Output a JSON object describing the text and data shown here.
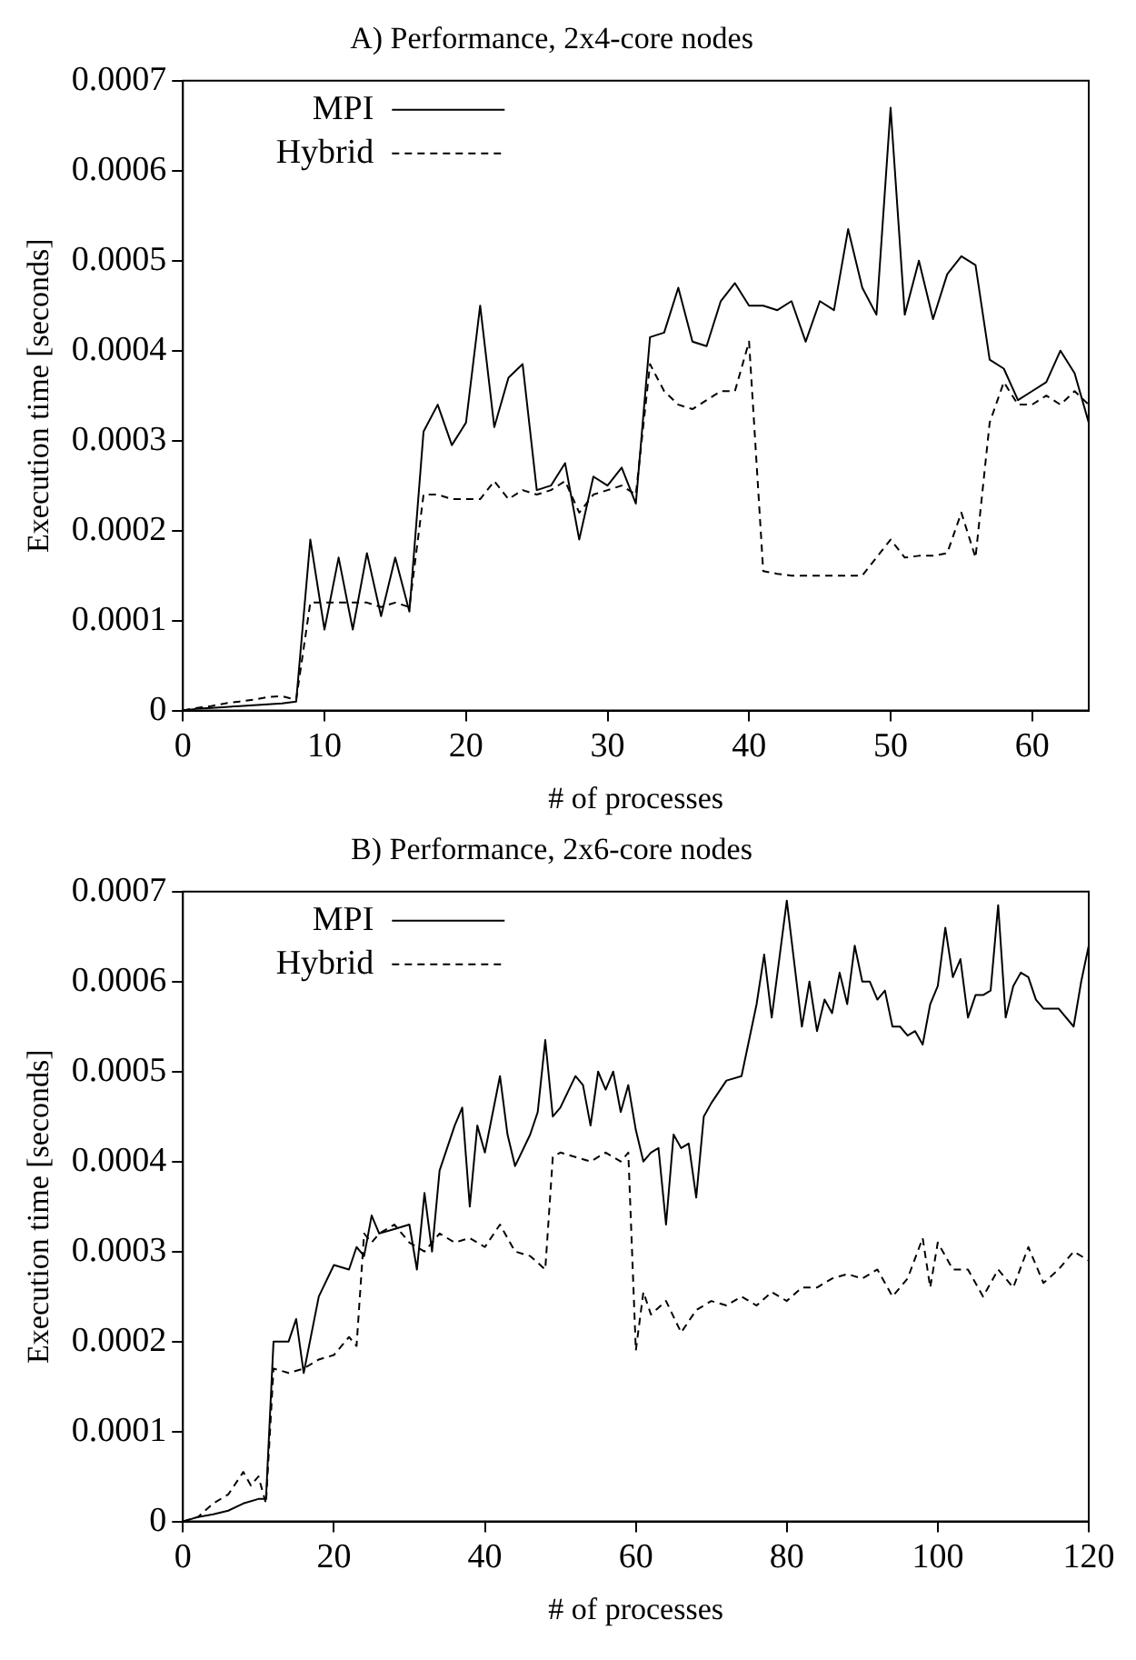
{
  "chart_data": [
    {
      "type": "line",
      "title": "A) Performance, 2x4-core nodes",
      "xlabel": "# of processes",
      "ylabel": "Execution time [seconds]",
      "xlim": [
        0,
        64
      ],
      "xticks": [
        0,
        10,
        20,
        30,
        40,
        50,
        60
      ],
      "ylim": [
        0,
        0.0007
      ],
      "yticks": [
        0,
        0.0001,
        0.0002,
        0.0003,
        0.0004,
        0.0005,
        0.0006,
        0.0007
      ],
      "legend": "top left",
      "x": [
        0,
        1,
        2,
        3,
        4,
        5,
        6,
        7,
        8,
        9,
        10,
        11,
        12,
        13,
        14,
        15,
        16,
        17,
        18,
        19,
        20,
        21,
        22,
        23,
        24,
        25,
        26,
        27,
        28,
        29,
        30,
        31,
        32,
        33,
        34,
        35,
        36,
        37,
        38,
        39,
        40,
        41,
        42,
        43,
        44,
        45,
        46,
        47,
        48,
        49,
        50,
        51,
        52,
        53,
        54,
        55,
        56,
        57,
        58,
        59,
        60,
        61,
        62,
        63,
        64
      ],
      "series": [
        {
          "name": "MPI",
          "color": "#000000",
          "line_style": "solid",
          "values": [
            0,
            2e-06,
            3e-06,
            4e-06,
            5e-06,
            6e-06,
            7e-06,
            8e-06,
            1e-05,
            0.00019,
            9e-05,
            0.00017,
            9e-05,
            0.000175,
            0.000105,
            0.00017,
            0.00011,
            0.00031,
            0.00034,
            0.000295,
            0.00032,
            0.00045,
            0.000315,
            0.00037,
            0.000385,
            0.000245,
            0.00025,
            0.000275,
            0.00019,
            0.00026,
            0.00025,
            0.00027,
            0.00023,
            0.000415,
            0.00042,
            0.00047,
            0.00041,
            0.000405,
            0.000455,
            0.000475,
            0.00045,
            0.00045,
            0.000445,
            0.000455,
            0.00041,
            0.000455,
            0.000445,
            0.000535,
            0.00047,
            0.00044,
            0.00067,
            0.00044,
            0.0005,
            0.000435,
            0.000485,
            0.000505,
            0.000495,
            0.00039,
            0.00038,
            0.000345,
            0.000355,
            0.000365,
            0.0004,
            0.000375,
            0.00032
          ]
        },
        {
          "name": "Hybrid",
          "color": "#000000",
          "line_style": "dashed",
          "values": [
            0,
            3e-06,
            5e-06,
            8e-06,
            1e-05,
            1.2e-05,
            1.5e-05,
            1.6e-05,
            1.2e-05,
            0.00012,
            0.00012,
            0.00012,
            0.00012,
            0.00012,
            0.000115,
            0.00012,
            0.000115,
            0.00024,
            0.00024,
            0.000235,
            0.000235,
            0.000235,
            0.000255,
            0.000235,
            0.000245,
            0.00024,
            0.000245,
            0.000255,
            0.00022,
            0.00024,
            0.000245,
            0.00025,
            0.00024,
            0.000385,
            0.000355,
            0.00034,
            0.000335,
            0.000345,
            0.000355,
            0.000355,
            0.00041,
            0.000155,
            0.000152,
            0.00015,
            0.00015,
            0.00015,
            0.00015,
            0.00015,
            0.00015,
            0.00017,
            0.00019,
            0.00017,
            0.000172,
            0.000172,
            0.000175,
            0.00022,
            0.00017,
            0.00032,
            0.000365,
            0.00034,
            0.00034,
            0.00035,
            0.00034,
            0.000355,
            0.00034
          ]
        }
      ]
    },
    {
      "type": "line",
      "title": "B) Performance, 2x6-core nodes",
      "xlabel": "# of processes",
      "ylabel": "Execution time [seconds]",
      "xlim": [
        0,
        120
      ],
      "xticks": [
        0,
        20,
        40,
        60,
        80,
        100,
        120
      ],
      "ylim": [
        0,
        0.0007
      ],
      "yticks": [
        0,
        0.0001,
        0.0002,
        0.0003,
        0.0004,
        0.0005,
        0.0006,
        0.0007
      ],
      "legend": "top left",
      "series": [
        {
          "name": "MPI",
          "color": "#000000",
          "line_style": "solid",
          "x": [
            0,
            2,
            4,
            6,
            8,
            10,
            11,
            12,
            14,
            15,
            16,
            18,
            20,
            22,
            23,
            24,
            25,
            26,
            28,
            30,
            31,
            32,
            33,
            34,
            36,
            37,
            38,
            39,
            40,
            42,
            43,
            44,
            46,
            47,
            48,
            49,
            50,
            52,
            53,
            54,
            55,
            56,
            57,
            58,
            59,
            60,
            61,
            62,
            63,
            64,
            65,
            66,
            67,
            68,
            69,
            70,
            72,
            74,
            76,
            77,
            78,
            80,
            81,
            82,
            83,
            84,
            85,
            86,
            87,
            88,
            89,
            90,
            91,
            92,
            93,
            94,
            95,
            96,
            97,
            98,
            99,
            100,
            101,
            102,
            103,
            104,
            105,
            106,
            107,
            108,
            109,
            110,
            111,
            112,
            113,
            114,
            115,
            116,
            118,
            119,
            120
          ],
          "values": [
            0,
            5e-06,
            8e-06,
            1.2e-05,
            2e-05,
            2.5e-05,
            2.5e-05,
            0.0002,
            0.0002,
            0.000225,
            0.000165,
            0.00025,
            0.000285,
            0.00028,
            0.000305,
            0.000295,
            0.00034,
            0.00032,
            0.000325,
            0.00033,
            0.00028,
            0.000365,
            0.0003,
            0.00039,
            0.00044,
            0.00046,
            0.00035,
            0.00044,
            0.00041,
            0.000495,
            0.00043,
            0.000395,
            0.00043,
            0.000455,
            0.000535,
            0.00045,
            0.00046,
            0.000495,
            0.000485,
            0.00044,
            0.0005,
            0.00048,
            0.0005,
            0.000455,
            0.000485,
            0.000435,
            0.0004,
            0.00041,
            0.000415,
            0.00033,
            0.00043,
            0.000415,
            0.00042,
            0.00036,
            0.00045,
            0.000465,
            0.00049,
            0.000495,
            0.000575,
            0.00063,
            0.00056,
            0.00069,
            0.00062,
            0.00055,
            0.0006,
            0.000545,
            0.00058,
            0.000565,
            0.00061,
            0.000575,
            0.00064,
            0.0006,
            0.0006,
            0.00058,
            0.00059,
            0.00055,
            0.00055,
            0.00054,
            0.000545,
            0.00053,
            0.000575,
            0.000595,
            0.00066,
            0.000605,
            0.000625,
            0.00056,
            0.000585,
            0.000585,
            0.00059,
            0.000685,
            0.00056,
            0.000595,
            0.00061,
            0.000605,
            0.00058,
            0.00057,
            0.00057,
            0.00057,
            0.00055,
            0.0006,
            0.00064
          ]
        },
        {
          "name": "Hybrid",
          "color": "#000000",
          "line_style": "dashed",
          "x": [
            0,
            2,
            4,
            6,
            8,
            9,
            10,
            11,
            12,
            14,
            16,
            18,
            20,
            22,
            23,
            24,
            25,
            26,
            28,
            30,
            32,
            34,
            36,
            38,
            40,
            42,
            44,
            46,
            48,
            49,
            50,
            52,
            54,
            56,
            58,
            59,
            60,
            61,
            62,
            64,
            66,
            68,
            70,
            72,
            74,
            76,
            78,
            80,
            82,
            84,
            86,
            88,
            90,
            92,
            94,
            96,
            98,
            99,
            100,
            102,
            104,
            106,
            108,
            110,
            112,
            114,
            116,
            118,
            120
          ],
          "values": [
            0,
            5e-06,
            2e-05,
            3e-05,
            5.5e-05,
            4e-05,
            5e-05,
            2e-05,
            0.00017,
            0.000165,
            0.00017,
            0.00018,
            0.000185,
            0.000205,
            0.000195,
            0.00032,
            0.00031,
            0.00032,
            0.00033,
            0.00031,
            0.0003,
            0.00032,
            0.00031,
            0.000315,
            0.000305,
            0.00033,
            0.0003,
            0.000295,
            0.00028,
            0.000405,
            0.00041,
            0.000405,
            0.0004,
            0.00041,
            0.0004,
            0.00041,
            0.00019,
            0.000255,
            0.00023,
            0.000245,
            0.00021,
            0.000235,
            0.000245,
            0.00024,
            0.00025,
            0.00024,
            0.000255,
            0.000245,
            0.00026,
            0.00026,
            0.00027,
            0.000275,
            0.00027,
            0.00028,
            0.00025,
            0.00027,
            0.000315,
            0.00026,
            0.00031,
            0.00028,
            0.00028,
            0.00025,
            0.00028,
            0.00026,
            0.000305,
            0.000265,
            0.00028,
            0.0003,
            0.00029
          ]
        }
      ]
    }
  ]
}
